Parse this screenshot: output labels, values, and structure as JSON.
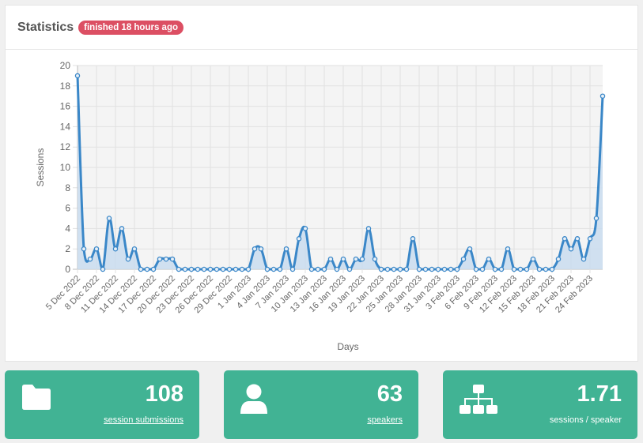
{
  "card": {
    "title": "Statistics",
    "badge": "finished 18 hours ago"
  },
  "chart_data": {
    "type": "line",
    "xlabel": "Days",
    "ylabel": "Sessions",
    "ylim": [
      0,
      20
    ],
    "yticks": [
      0,
      2,
      4,
      6,
      8,
      10,
      12,
      14,
      16,
      18,
      20
    ],
    "xticks": [
      "5 Dec 2022",
      "8 Dec 2022",
      "11 Dec 2022",
      "14 Dec 2022",
      "17 Dec 2022",
      "20 Dec 2022",
      "23 Dec 2022",
      "26 Dec 2022",
      "29 Dec 2022",
      "1 Jan 2023",
      "4 Jan 2023",
      "7 Jan 2023",
      "10 Jan 2023",
      "13 Jan 2023",
      "16 Jan 2023",
      "19 Jan 2023",
      "22 Jan 2023",
      "25 Jan 2023",
      "28 Jan 2023",
      "31 Jan 2023",
      "3 Feb 2023",
      "6 Feb 2023",
      "9 Feb 2023",
      "12 Feb 2023",
      "15 Feb 2023",
      "18 Feb 2023",
      "21 Feb 2023",
      "24 Feb 2023"
    ],
    "x_start": "5 Dec 2022",
    "x_end": "24 Feb 2023",
    "values": [
      19,
      2,
      1,
      2,
      0,
      5,
      2,
      4,
      1,
      2,
      0,
      0,
      0,
      1,
      1,
      1,
      0,
      0,
      0,
      0,
      0,
      0,
      0,
      0,
      0,
      0,
      0,
      0,
      2,
      2,
      0,
      0,
      0,
      2,
      0,
      3,
      4,
      0,
      0,
      0,
      1,
      0,
      1,
      0,
      1,
      1,
      4,
      1,
      0,
      0,
      0,
      0,
      0,
      3,
      0,
      0,
      0,
      0,
      0,
      0,
      0,
      1,
      2,
      0,
      0,
      1,
      0,
      0,
      2,
      0,
      0,
      0,
      1,
      0,
      0,
      0,
      1,
      3,
      2,
      3,
      1,
      3,
      5,
      17
    ],
    "grid": true,
    "line_color": "#3a87c8",
    "fill_color": "#c9dcee"
  },
  "stats": [
    {
      "value": "108",
      "label": "session submissions",
      "icon": "folder-icon"
    },
    {
      "value": "63",
      "label": "speakers",
      "icon": "user-icon"
    },
    {
      "value": "1.71",
      "label": "sessions / speaker",
      "icon": "sitemap-icon"
    }
  ]
}
